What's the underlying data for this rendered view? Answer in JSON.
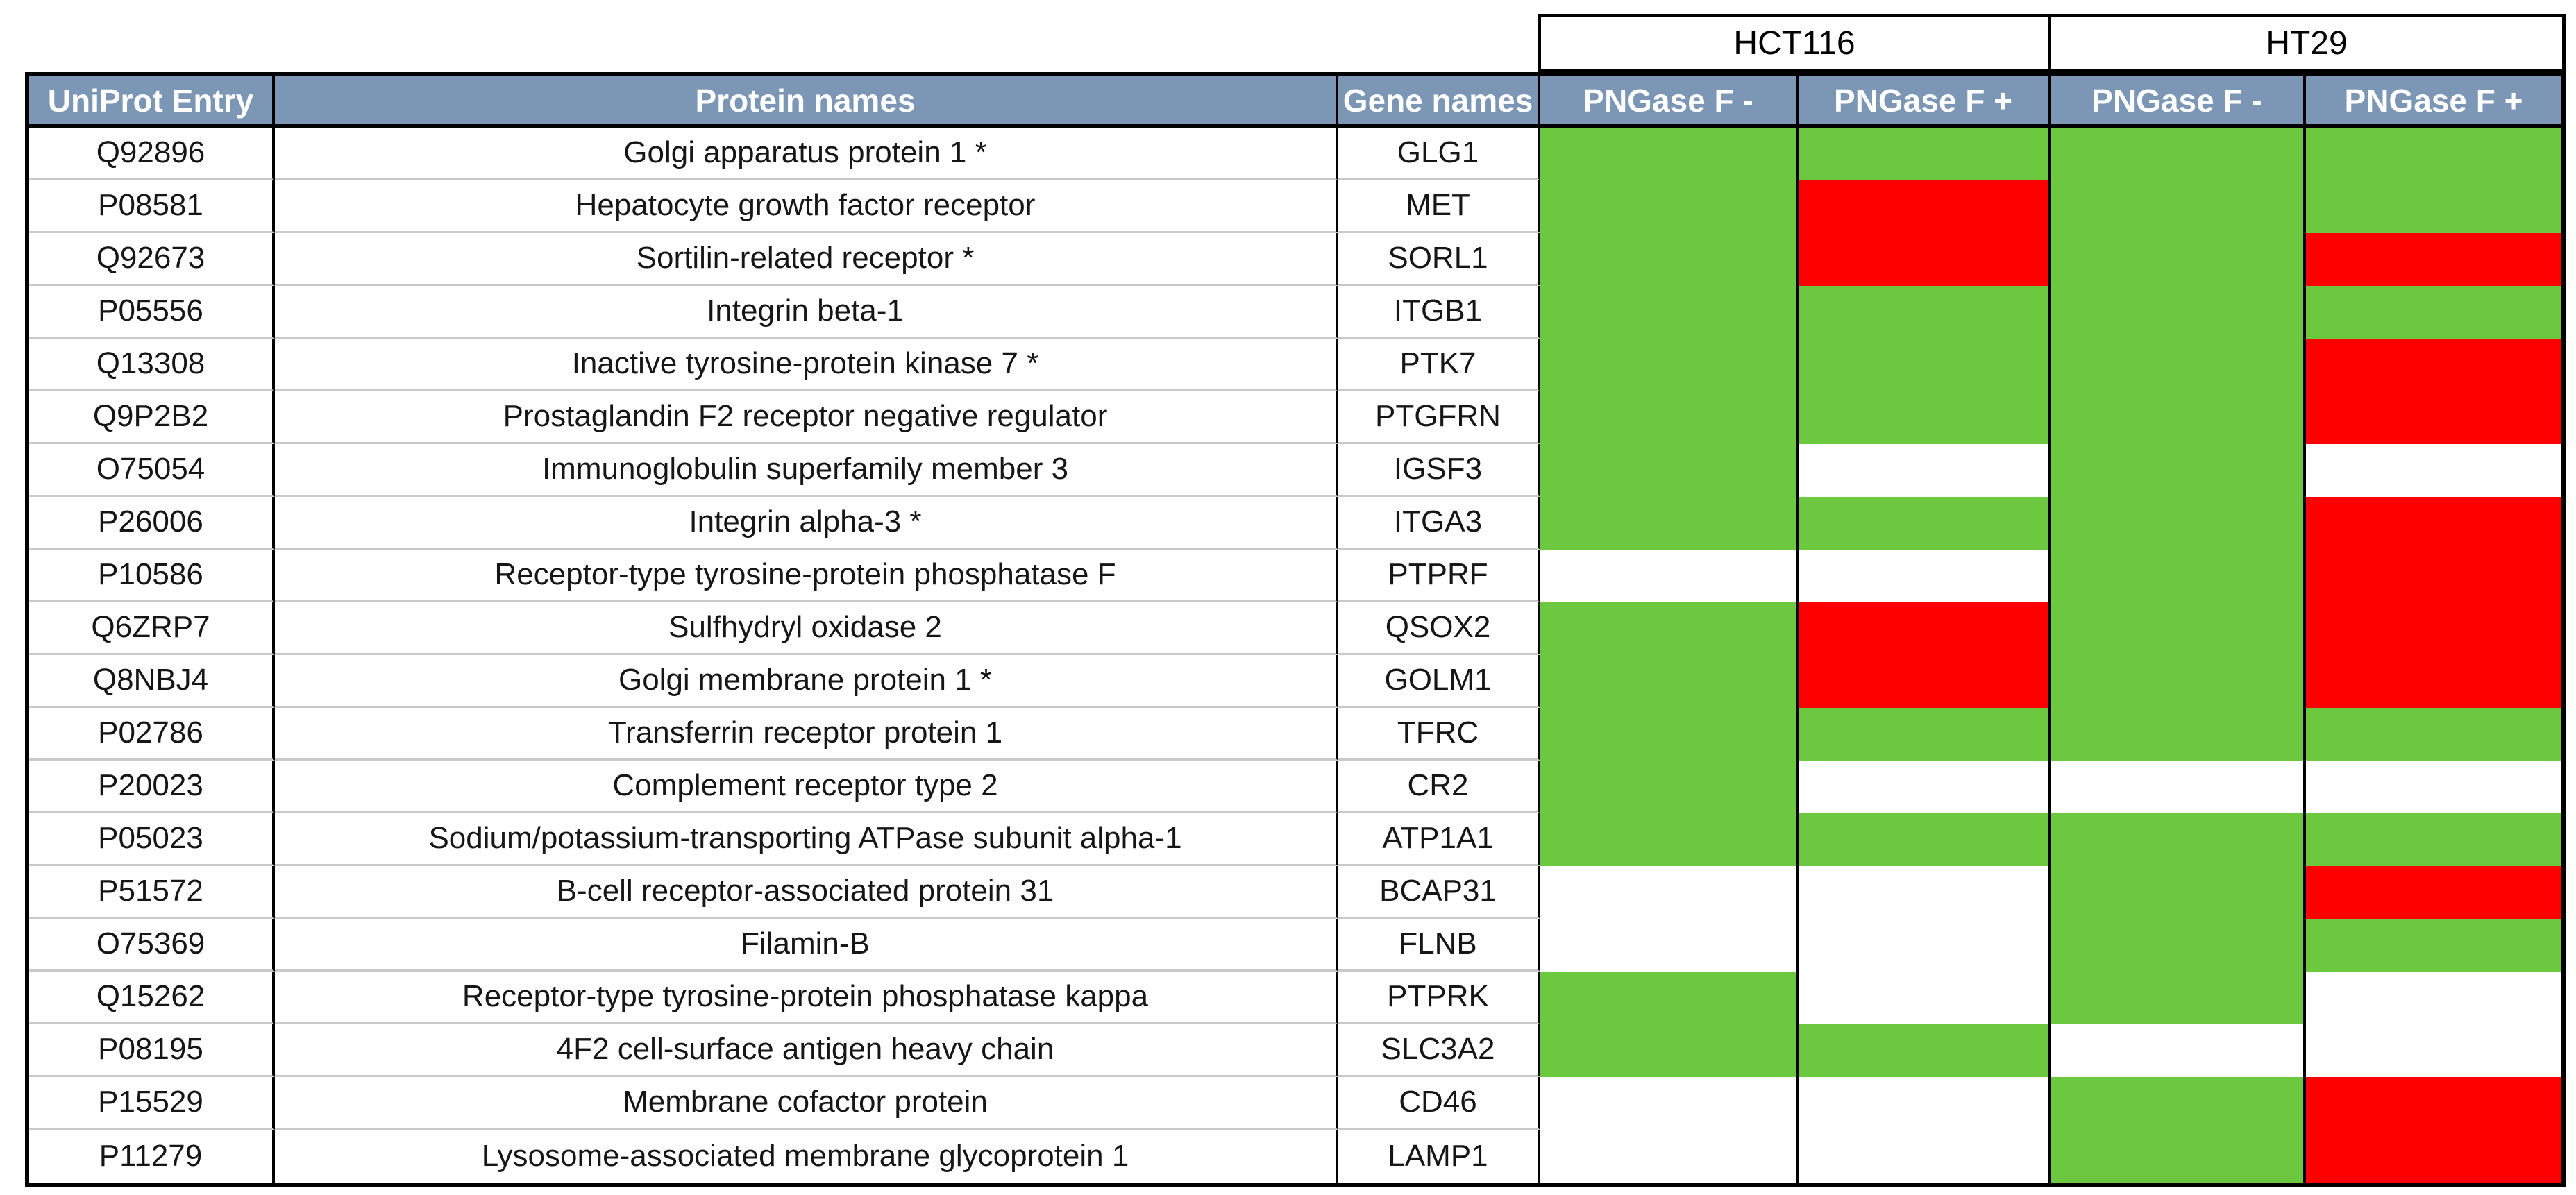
{
  "figure": {
    "description_colors": {
      "green": "#6CC83F",
      "red": "#FF0000",
      "white": "#FFFFFF",
      "header_background": "#7B97B5",
      "header_text": "#FFFFFF",
      "border": "#000000",
      "row_divider": "#C9C9C9"
    }
  },
  "table": {
    "groups": [
      {
        "label": "HCT116"
      },
      {
        "label": "HT29"
      }
    ],
    "columns": [
      {
        "key": "uniprot",
        "label": "UniProt Entry"
      },
      {
        "key": "protein",
        "label": "Protein names"
      },
      {
        "key": "gene",
        "label": "Gene names"
      },
      {
        "key": "hct116_minus",
        "label": "PNGase F -",
        "group": "HCT116"
      },
      {
        "key": "hct116_plus",
        "label": "PNGase F +",
        "group": "HCT116"
      },
      {
        "key": "ht29_minus",
        "label": "PNGase F -",
        "group": "HT29"
      },
      {
        "key": "ht29_plus",
        "label": "PNGase F +",
        "group": "HT29"
      }
    ],
    "state_columns": [
      "hct116_minus",
      "hct116_plus",
      "ht29_minus",
      "ht29_plus"
    ],
    "colors": {
      "green": "#6CC83F",
      "red": "#FF0000",
      "white": "#FFFFFF"
    },
    "rows": [
      {
        "uniprot": "Q92896",
        "protein": "Golgi apparatus protein 1 *",
        "gene": "GLG1",
        "states": [
          "green",
          "green",
          "green",
          "green"
        ]
      },
      {
        "uniprot": "P08581",
        "protein": "Hepatocyte growth factor receptor",
        "gene": "MET",
        "states": [
          "green",
          "red",
          "green",
          "green"
        ]
      },
      {
        "uniprot": "Q92673",
        "protein": "Sortilin-related receptor *",
        "gene": "SORL1",
        "states": [
          "green",
          "red",
          "green",
          "red"
        ]
      },
      {
        "uniprot": "P05556",
        "protein": "Integrin beta-1",
        "gene": "ITGB1",
        "states": [
          "green",
          "green",
          "green",
          "green"
        ]
      },
      {
        "uniprot": "Q13308",
        "protein": "Inactive tyrosine-protein kinase 7 *",
        "gene": "PTK7",
        "states": [
          "green",
          "green",
          "green",
          "red"
        ]
      },
      {
        "uniprot": "Q9P2B2",
        "protein": "Prostaglandin F2 receptor negative regulator",
        "gene": "PTGFRN",
        "states": [
          "green",
          "green",
          "green",
          "red"
        ]
      },
      {
        "uniprot": "O75054",
        "protein": "Immunoglobulin superfamily member 3",
        "gene": "IGSF3",
        "states": [
          "green",
          "white",
          "green",
          "white"
        ]
      },
      {
        "uniprot": "P26006",
        "protein": "Integrin alpha-3 *",
        "gene": "ITGA3",
        "states": [
          "green",
          "green",
          "green",
          "red"
        ]
      },
      {
        "uniprot": "P10586",
        "protein": "Receptor-type tyrosine-protein phosphatase F",
        "gene": "PTPRF",
        "states": [
          "white",
          "white",
          "green",
          "red"
        ]
      },
      {
        "uniprot": "Q6ZRP7",
        "protein": "Sulfhydryl oxidase 2",
        "gene": "QSOX2",
        "states": [
          "green",
          "red",
          "green",
          "red"
        ]
      },
      {
        "uniprot": "Q8NBJ4",
        "protein": "Golgi membrane protein 1 *",
        "gene": "GOLM1",
        "states": [
          "green",
          "red",
          "green",
          "red"
        ]
      },
      {
        "uniprot": "P02786",
        "protein": "Transferrin receptor protein 1",
        "gene": "TFRC",
        "states": [
          "green",
          "green",
          "green",
          "green"
        ]
      },
      {
        "uniprot": "P20023",
        "protein": "Complement receptor type 2",
        "gene": "CR2",
        "states": [
          "green",
          "white",
          "white",
          "white"
        ]
      },
      {
        "uniprot": "P05023",
        "protein": "Sodium/potassium-transporting ATPase subunit alpha-1",
        "gene": "ATP1A1",
        "states": [
          "green",
          "green",
          "green",
          "green"
        ]
      },
      {
        "uniprot": "P51572",
        "protein": "B-cell receptor-associated protein 31",
        "gene": "BCAP31",
        "states": [
          "white",
          "white",
          "green",
          "red"
        ]
      },
      {
        "uniprot": "O75369",
        "protein": "Filamin-B",
        "gene": "FLNB",
        "states": [
          "white",
          "white",
          "green",
          "green"
        ]
      },
      {
        "uniprot": "Q15262",
        "protein": "Receptor-type tyrosine-protein phosphatase kappa",
        "gene": "PTPRK",
        "states": [
          "green",
          "white",
          "green",
          "white"
        ]
      },
      {
        "uniprot": "P08195",
        "protein": "4F2 cell-surface antigen heavy chain",
        "gene": "SLC3A2",
        "states": [
          "green",
          "green",
          "white",
          "white"
        ]
      },
      {
        "uniprot": "P15529",
        "protein": "Membrane cofactor protein",
        "gene": "CD46",
        "states": [
          "white",
          "white",
          "green",
          "red"
        ]
      },
      {
        "uniprot": "P11279",
        "protein": "Lysosome-associated membrane glycoprotein 1",
        "gene": "LAMP1",
        "states": [
          "white",
          "white",
          "green",
          "red"
        ]
      }
    ]
  }
}
